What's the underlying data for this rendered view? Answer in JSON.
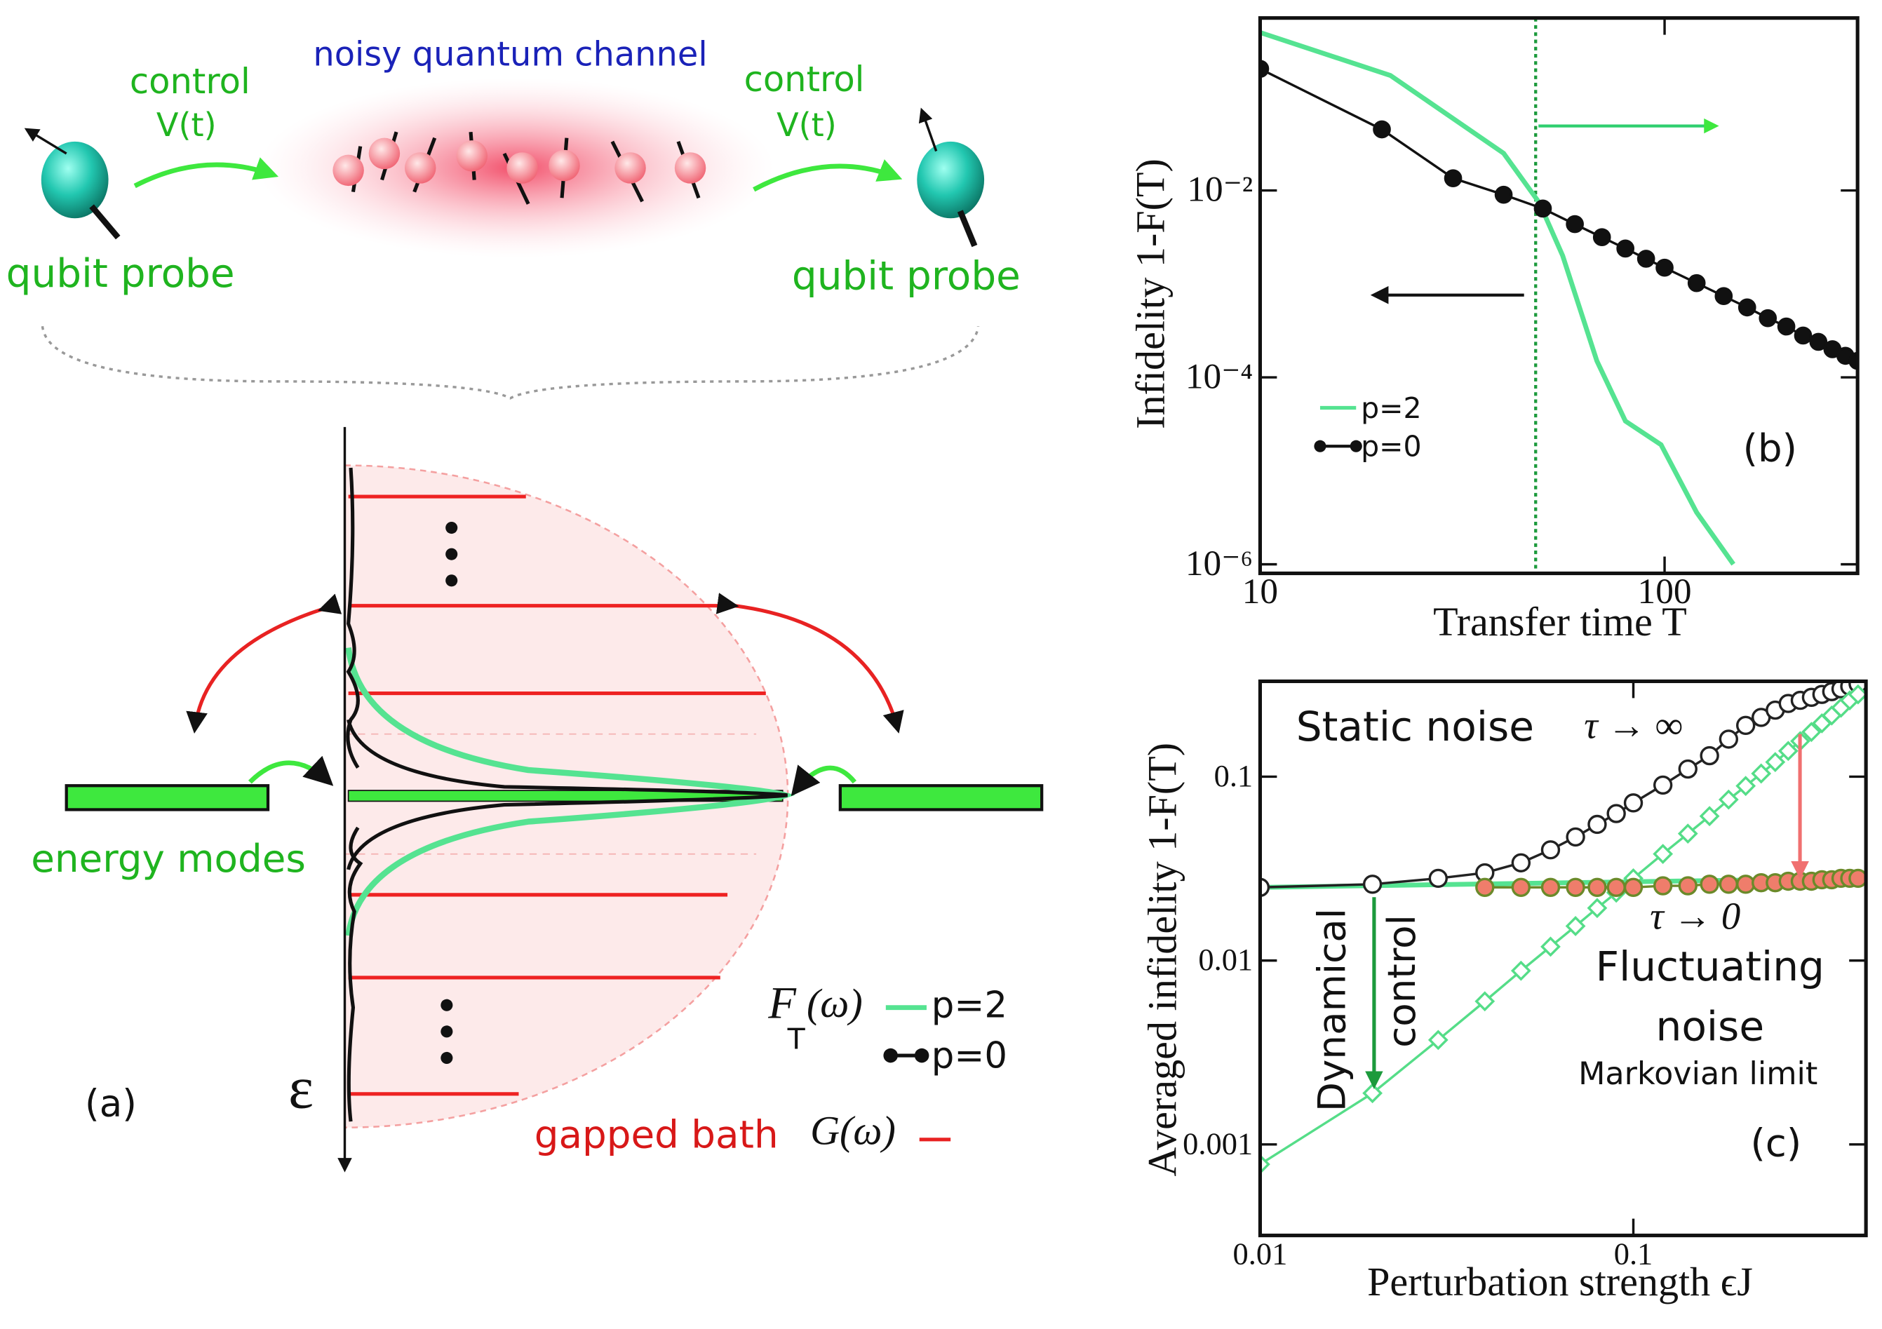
{
  "diagram": {
    "channel_title": "noisy quantum channel",
    "controls": [
      {
        "label": "control",
        "signal": "V(t)"
      },
      {
        "label": "control",
        "signal": "V(t)"
      }
    ],
    "probes": [
      "qubit probe",
      "qubit probe"
    ],
    "energy_modes": "energy modes",
    "panel_label": "(a)",
    "energy_axis": "ε",
    "filter_symbol": "F",
    "filter_subscript": "T",
    "filter_arg": "(ω)",
    "legend": [
      "p=2",
      "p=0"
    ],
    "bath_label": "gapped bath",
    "bath_symbol": "G(ω)"
  },
  "chart_data": [
    {
      "type": "line",
      "panel_label": "(b)",
      "xlabel": "Transfer time T",
      "ylabel": "Infidelity  1-F(T)",
      "log_x": true,
      "log_y": true,
      "xlim": [
        10,
        300
      ],
      "ylim": [
        8e-07,
        0.7
      ],
      "xticks": [
        10,
        100
      ],
      "yticks": [
        {
          "value": 0.01,
          "label": "10⁻²"
        },
        {
          "value": 0.0001,
          "label": "10⁻⁴"
        },
        {
          "value": 1e-06,
          "label": "10⁻⁶"
        }
      ],
      "vline_x": 48,
      "series": [
        {
          "name": "p=2",
          "color": "#55e391",
          "marker": null,
          "x": [
            10,
            21,
            40,
            49,
            56,
            68,
            80,
            98,
            120,
            148
          ],
          "values": [
            0.49,
            0.17,
            0.025,
            0.0074,
            0.002,
            0.00015,
            3.4e-05,
            1.9e-05,
            3.6e-06,
            1e-06
          ]
        },
        {
          "name": "p=0",
          "color": "#111111",
          "marker": "circle",
          "marker_fill": "#111111",
          "x": [
            10,
            20,
            30,
            40,
            50,
            60,
            70,
            80,
            90,
            100,
            120,
            140,
            160,
            180,
            200,
            220,
            240,
            260,
            280,
            300
          ],
          "values": [
            0.2,
            0.045,
            0.0135,
            0.009,
            0.0064,
            0.00436,
            0.00316,
            0.00239,
            0.00186,
            0.00149,
            0.00102,
            0.00074,
            0.00056,
            0.00043,
            0.00035,
            0.00028,
            0.00024,
            0.0002,
            0.00017,
            0.00015
          ]
        }
      ]
    },
    {
      "type": "line",
      "panel_label": "(c)",
      "xlabel": "Perturbation strength ϵJ",
      "ylabel": "Averaged infidelity 1-F(T)",
      "log_x": true,
      "log_y": true,
      "xlim": [
        0.01,
        0.42
      ],
      "ylim": [
        0.00032,
        0.33
      ],
      "xticks": [
        0.01,
        0.1
      ],
      "yticks": [
        0.001,
        0.01,
        0.1
      ],
      "annotations": [
        "Static noise",
        "τ → ∞",
        "τ → 0",
        "Fluctuating",
        "noise",
        "Markovian limit",
        "Dynamical",
        "control"
      ],
      "series": [
        {
          "color": "#55e391",
          "marker": null,
          "x": [
            0.01,
            0.4
          ],
          "values": [
            0.025,
            0.028
          ]
        },
        {
          "color": "#222222",
          "marker": "circle",
          "marker_fill": "#ffffff",
          "x": [
            0.01,
            0.02,
            0.03,
            0.04,
            0.05,
            0.06,
            0.07,
            0.08,
            0.09,
            0.1,
            0.12,
            0.14,
            0.16,
            0.18,
            0.2,
            0.22,
            0.24,
            0.26,
            0.28,
            0.3,
            0.32,
            0.34,
            0.36,
            0.38,
            0.4
          ],
          "values": [
            0.025,
            0.026,
            0.028,
            0.03,
            0.034,
            0.04,
            0.047,
            0.055,
            0.063,
            0.072,
            0.09,
            0.11,
            0.13,
            0.16,
            0.19,
            0.21,
            0.23,
            0.25,
            0.26,
            0.27,
            0.28,
            0.29,
            0.3,
            0.31,
            0.32
          ]
        },
        {
          "color": "#55dd88",
          "marker": "diamond",
          "marker_fill": "#ffffff",
          "x": [
            0.01,
            0.02,
            0.03,
            0.04,
            0.05,
            0.06,
            0.07,
            0.08,
            0.09,
            0.1,
            0.12,
            0.14,
            0.16,
            0.18,
            0.2,
            0.22,
            0.24,
            0.26,
            0.28,
            0.3,
            0.32,
            0.34,
            0.36,
            0.38,
            0.4
          ],
          "values": [
            0.00078,
            0.0019,
            0.0037,
            0.006,
            0.0088,
            0.0119,
            0.0154,
            0.0193,
            0.0234,
            0.028,
            0.038,
            0.049,
            0.061,
            0.075,
            0.089,
            0.104,
            0.12,
            0.138,
            0.156,
            0.175,
            0.195,
            0.215,
            0.237,
            0.26,
            0.28
          ]
        },
        {
          "color": "#6b8a2a",
          "marker": "circle",
          "marker_fill": "#ef7d6b",
          "x": [
            0.04,
            0.05,
            0.06,
            0.07,
            0.08,
            0.09,
            0.1,
            0.12,
            0.14,
            0.16,
            0.18,
            0.2,
            0.22,
            0.24,
            0.26,
            0.28,
            0.3,
            0.32,
            0.34,
            0.36,
            0.38,
            0.4
          ],
          "values": [
            0.025,
            0.025,
            0.025,
            0.025,
            0.025,
            0.025,
            0.025,
            0.0255,
            0.0255,
            0.026,
            0.026,
            0.026,
            0.0265,
            0.0265,
            0.027,
            0.027,
            0.027,
            0.0275,
            0.0275,
            0.028,
            0.028,
            0.028
          ]
        }
      ]
    }
  ]
}
